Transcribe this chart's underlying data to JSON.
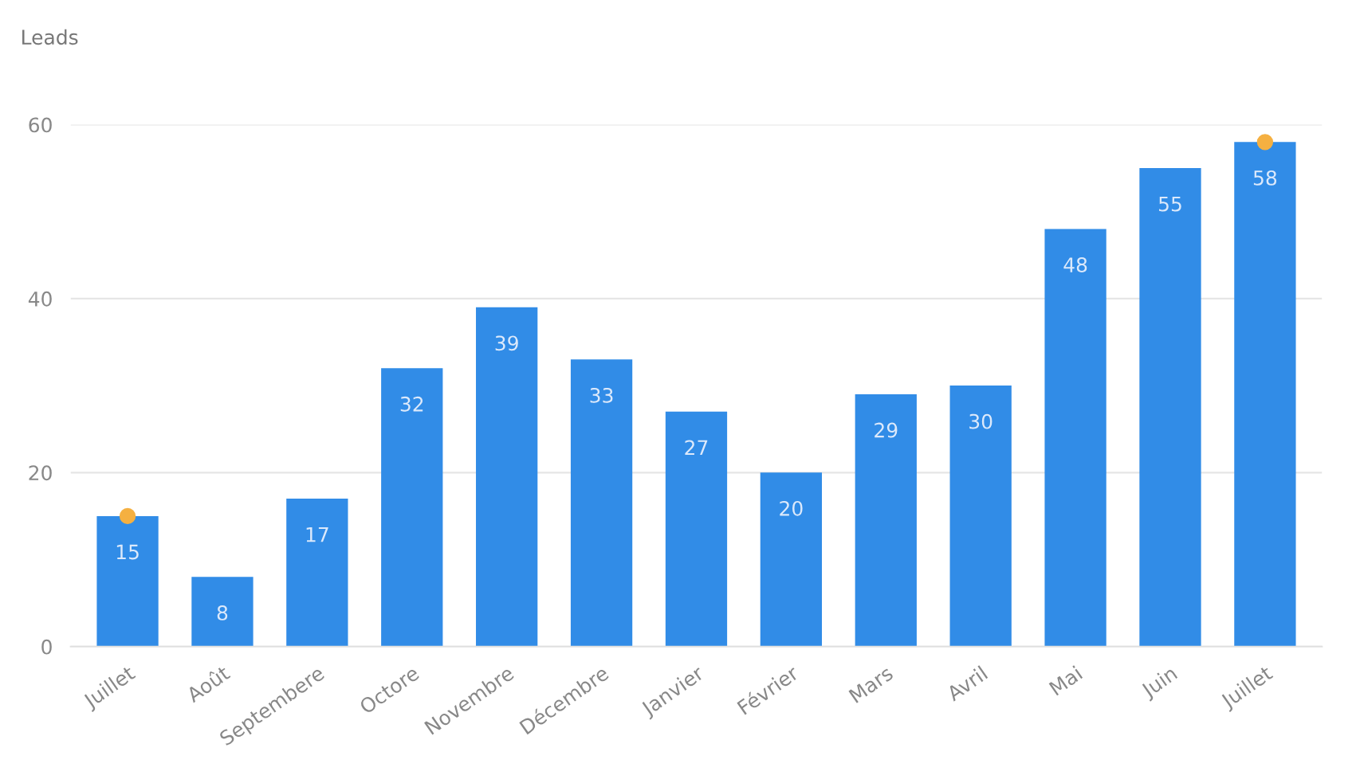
{
  "chart_data": {
    "type": "bar",
    "ylabel": "Leads",
    "categories": [
      "Juillet",
      "Août",
      "Septembere",
      "Octore",
      "Novembre",
      "Décembre",
      "Janvier",
      "Février",
      "Mars",
      "Avril",
      "Mai",
      "Juin",
      "Juillet"
    ],
    "series": [
      {
        "color": "#318ce7",
        "values": [
          15,
          8,
          17,
          32,
          39,
          33,
          27,
          20,
          29,
          30,
          48,
          55,
          58
        ],
        "value_labels": [
          "15",
          "8",
          "17",
          "32",
          "39",
          "33",
          "27",
          "20",
          "29",
          "30",
          "48",
          "55",
          "58"
        ]
      },
      {
        "type": "scatter",
        "color": "#f5b041",
        "values": [
          15,
          null,
          null,
          null,
          null,
          null,
          null,
          null,
          null,
          null,
          null,
          null,
          58
        ]
      }
    ],
    "ylim": [
      0,
      60
    ],
    "yticks": [
      0,
      20,
      40,
      60
    ],
    "grid": "y",
    "legend": false
  }
}
